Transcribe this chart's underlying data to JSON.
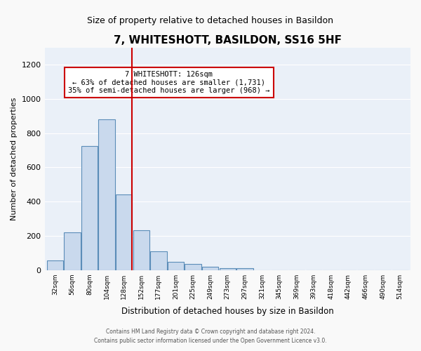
{
  "title": "7, WHITESHOTT, BASILDON, SS16 5HF",
  "subtitle": "Size of property relative to detached houses in Basildon",
  "xlabel": "Distribution of detached houses by size in Basildon",
  "ylabel": "Number of detached properties",
  "categories": [
    "32sqm",
    "56sqm",
    "80sqm",
    "104sqm",
    "128sqm",
    "152sqm",
    "177sqm",
    "201sqm",
    "225sqm",
    "249sqm",
    "273sqm",
    "297sqm",
    "321sqm",
    "345sqm",
    "369sqm",
    "393sqm",
    "418sqm",
    "442sqm",
    "466sqm",
    "490sqm",
    "514sqm"
  ],
  "values": [
    55,
    218,
    725,
    878,
    440,
    232,
    108,
    47,
    35,
    20,
    10,
    9,
    0,
    0,
    0,
    0,
    0,
    0,
    0,
    0,
    0
  ],
  "bar_color": "#c9d9ed",
  "bar_edge_color": "#5b8db8",
  "bg_color": "#eaf0f8",
  "grid_color": "#ffffff",
  "annotation_box_color": "#ffffff",
  "annotation_border_color": "#cc0000",
  "vline_color": "#cc0000",
  "vline_x": 4.475,
  "annotation_text_line1": "7 WHITESHOTT: 126sqm",
  "annotation_text_line2": "← 63% of detached houses are smaller (1,731)",
  "annotation_text_line3": "35% of semi-detached houses are larger (968) →",
  "ylim": [
    0,
    1300
  ],
  "yticks": [
    0,
    200,
    400,
    600,
    800,
    1000,
    1200
  ],
  "footer_line1": "Contains HM Land Registry data © Crown copyright and database right 2024.",
  "footer_line2": "Contains public sector information licensed under the Open Government Licence v3.0."
}
